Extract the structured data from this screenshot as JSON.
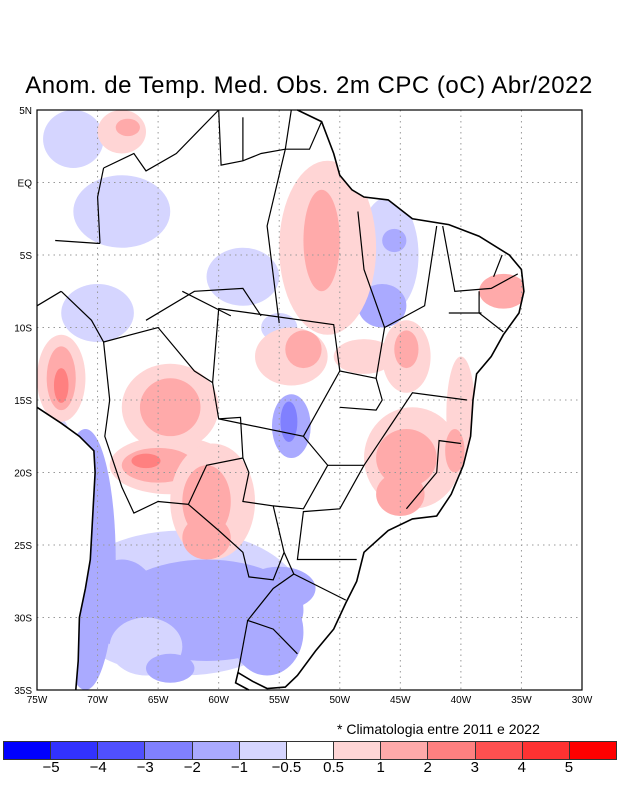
{
  "title": "Anom. de Temp. Med. Obs. 2m CPC (oC) Abr/2022",
  "note": "* Climatologia entre 2011 e 2022",
  "lon_labels": [
    "75W",
    "70W",
    "65W",
    "60W",
    "55W",
    "50W",
    "45W",
    "40W",
    "35W",
    "30W"
  ],
  "lat_labels": [
    "5N",
    "EQ",
    "5S",
    "10S",
    "15S",
    "20S",
    "25S",
    "30S",
    "35S"
  ],
  "colorbar": {
    "colors": [
      "#0000ff",
      "#3232ff",
      "#5050ff",
      "#8080ff",
      "#aaaaff",
      "#d5d5ff",
      "#ffffff",
      "#ffd5d5",
      "#ffaaaa",
      "#ff8080",
      "#ff5050",
      "#ff3232",
      "#ff0000"
    ],
    "labels": [
      "−5",
      "−4",
      "−3",
      "−2",
      "−1",
      "−0.5",
      "0.5",
      "1",
      "2",
      "3",
      "4",
      "5"
    ]
  }
}
